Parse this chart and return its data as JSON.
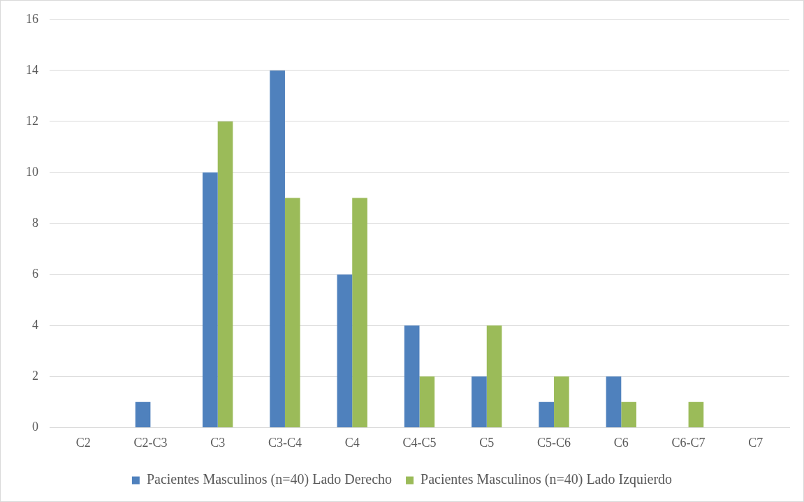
{
  "chart_data": {
    "type": "bar",
    "categories": [
      "C2",
      "C2-C3",
      "C3",
      "C3-C4",
      "C4",
      "C4-C5",
      "C5",
      "C5-C6",
      "C6",
      "C6-C7",
      "C7"
    ],
    "series": [
      {
        "name": "Pacientes Masculinos (n=40) Lado Derecho",
        "color": "#4f81bd",
        "values": [
          0,
          1,
          10,
          14,
          6,
          4,
          2,
          1,
          2,
          0,
          0
        ]
      },
      {
        "name": "Pacientes Masculinos (n=40) Lado Izquierdo",
        "color": "#9bbb59",
        "values": [
          0,
          0,
          12,
          9,
          9,
          2,
          4,
          2,
          1,
          1,
          0
        ]
      }
    ],
    "ylim": [
      0,
      16
    ],
    "yticks": [
      0,
      2,
      4,
      6,
      8,
      10,
      12,
      14,
      16
    ],
    "grid": "y",
    "legend": "bottom"
  }
}
